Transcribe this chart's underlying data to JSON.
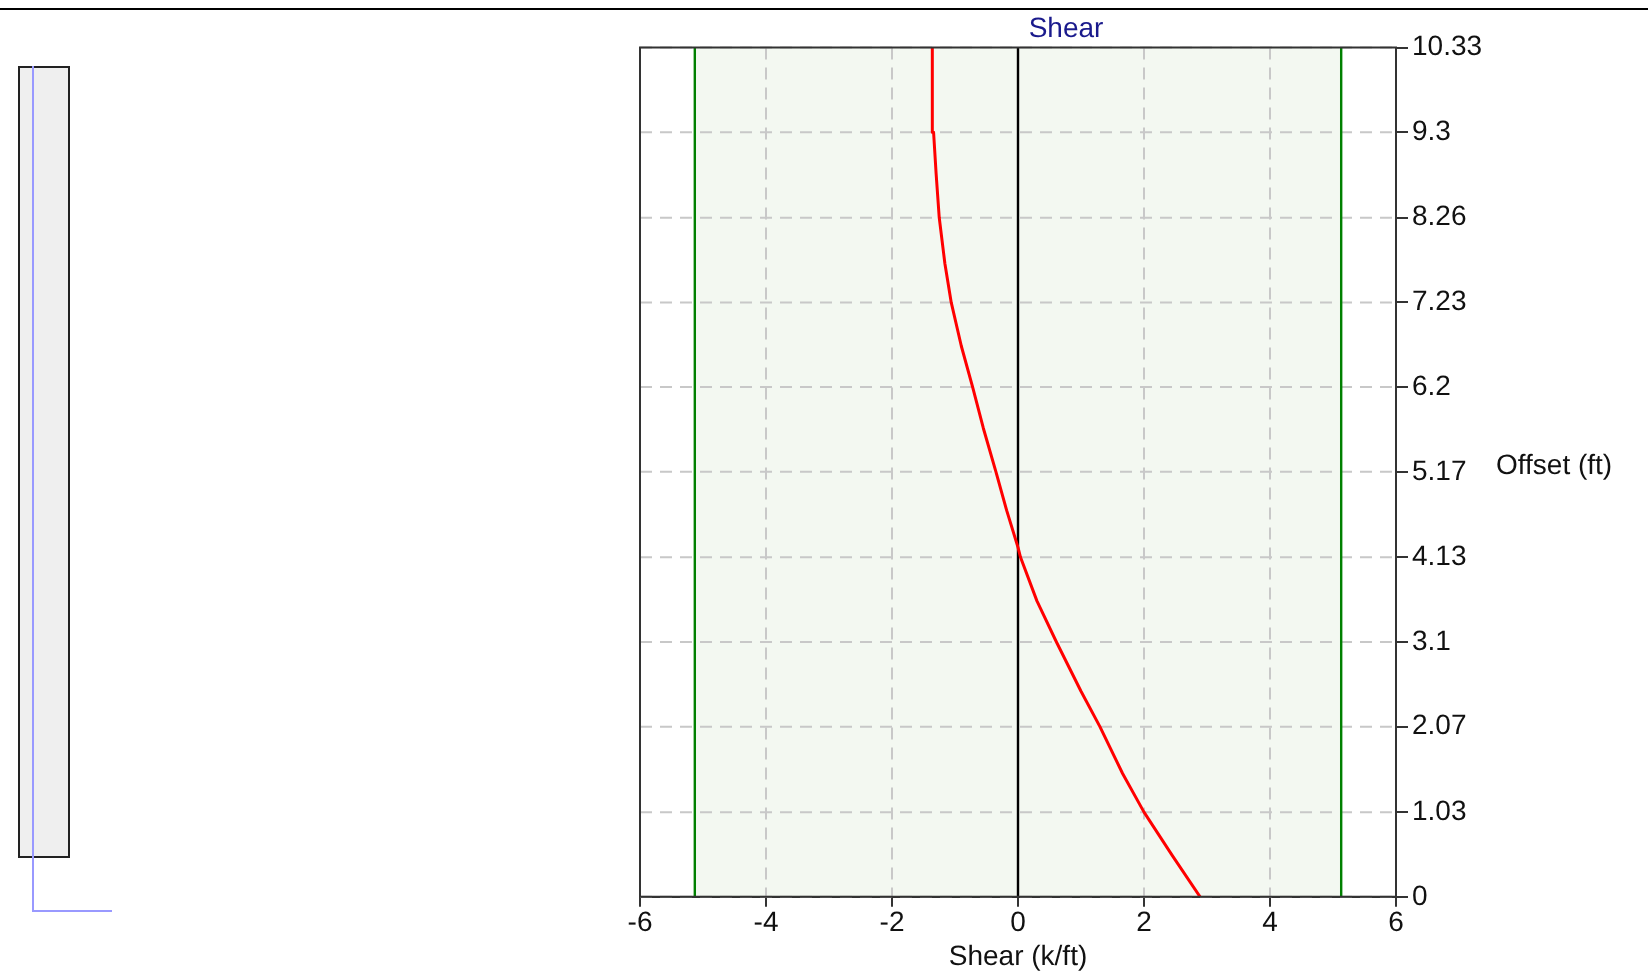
{
  "chart_data": {
    "type": "line",
    "title": "Shear",
    "xlabel": "Shear (k/ft)",
    "ylabel": "Offset (ft)",
    "xlim": [
      -6,
      6
    ],
    "xticks": [
      -6,
      -4,
      -2,
      0,
      2,
      4,
      6
    ],
    "ylim": [
      0,
      10.33
    ],
    "yticks": [
      0,
      1.03,
      2.07,
      3.1,
      4.13,
      5.17,
      6.2,
      7.23,
      8.26,
      9.3,
      10.33
    ],
    "grid": true,
    "legend": false,
    "marker": "none",
    "line_style": "solid",
    "series": [
      {
        "color": "#ff0000",
        "x": [
          2.89,
          2.45,
          2.0,
          1.66,
          1.3,
          1.0,
          0.61,
          0.3,
          0.04,
          0,
          -0.18,
          -0.35,
          -0.55,
          -0.72,
          -0.9,
          -1.06,
          -1.16,
          -1.25,
          -1.3,
          -1.34,
          -1.36
        ],
        "values": [
          0,
          0.5,
          1.03,
          1.5,
          2.07,
          2.5,
          3.1,
          3.6,
          4.13,
          4.25,
          4.7,
          5.17,
          5.7,
          6.2,
          6.7,
          7.23,
          7.7,
          8.26,
          8.8,
          9.3,
          10.33
        ]
      }
    ],
    "bands": [
      {
        "axis": "x",
        "from": -5.13,
        "to": 5.13,
        "color": "#f3f8f1"
      }
    ],
    "ref_lines": [
      {
        "axis": "x",
        "value": -5.13,
        "color": "#008000"
      },
      {
        "axis": "x",
        "value": 5.13,
        "color": "#008000"
      },
      {
        "axis": "x",
        "value": 0,
        "color": "#000000"
      }
    ]
  }
}
